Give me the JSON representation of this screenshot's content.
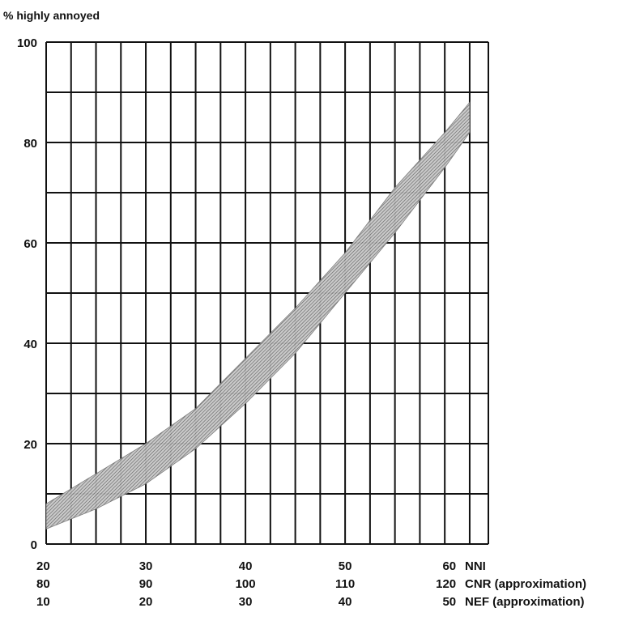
{
  "chart_data": {
    "type": "area",
    "title": "",
    "ylabel": "% highly annoyed",
    "ylim": [
      0,
      100
    ],
    "yticks": [
      "0",
      "20",
      "40",
      "60",
      "80",
      "100"
    ],
    "grid": true,
    "x": [
      20,
      25,
      30,
      35,
      40,
      45,
      50,
      55,
      60,
      62.5
    ],
    "band_lower": [
      3,
      7,
      12,
      19,
      28,
      38,
      50,
      62,
      75,
      82
    ],
    "band_upper": [
      8,
      14,
      20,
      27,
      37,
      47,
      58,
      71,
      82,
      88
    ],
    "x_scales": [
      {
        "name": "NNI",
        "ticks": [
          "20",
          "30",
          "40",
          "50",
          "60"
        ]
      },
      {
        "name": "CNR (approximation)",
        "ticks": [
          "80",
          "90",
          "100",
          "110",
          "120"
        ]
      },
      {
        "name": "NEF (approximation)",
        "ticks": [
          "10",
          "20",
          "30",
          "40",
          "50"
        ]
      }
    ]
  }
}
